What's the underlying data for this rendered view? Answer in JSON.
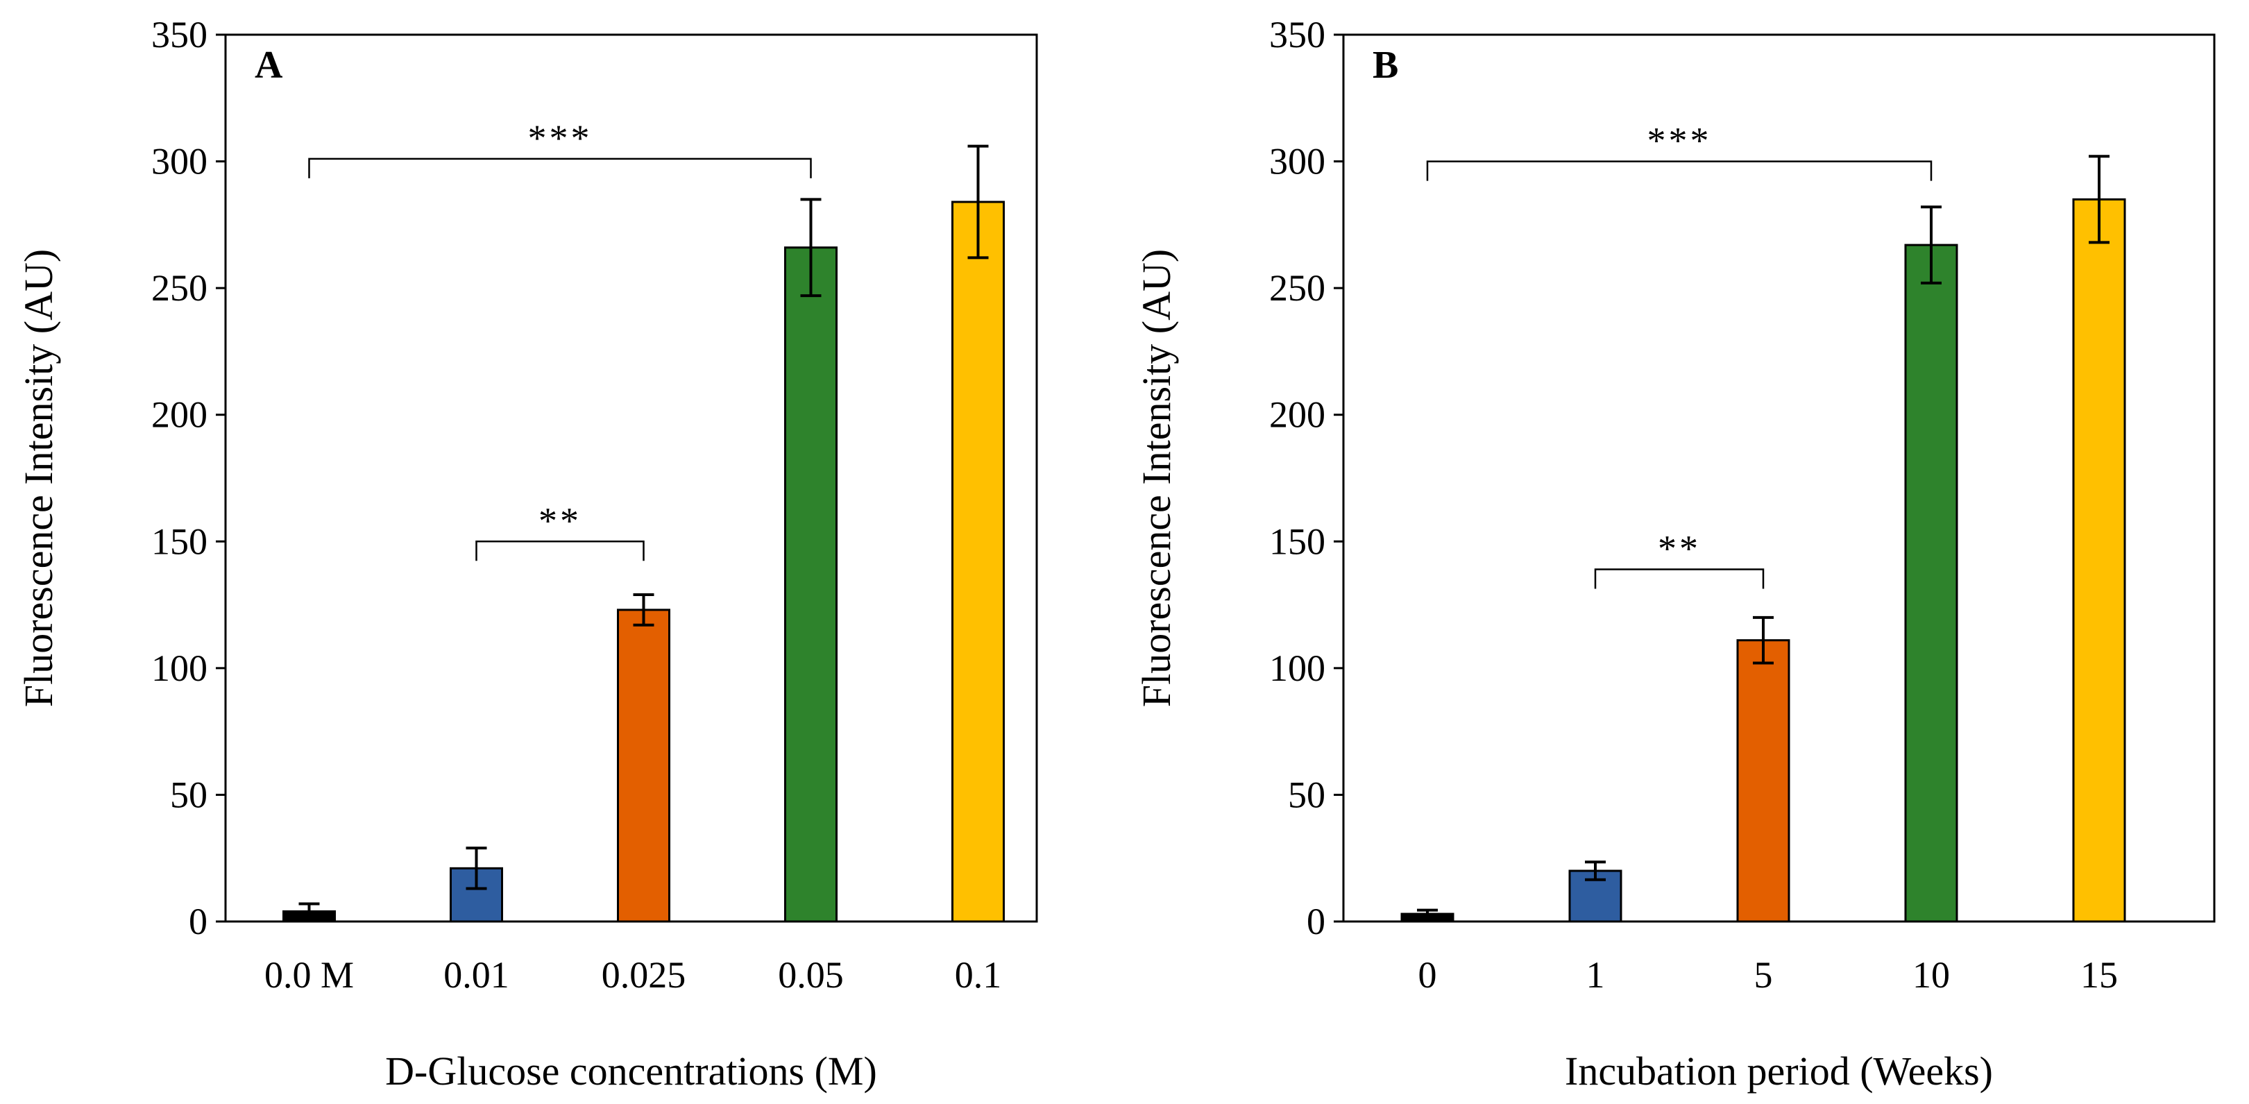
{
  "chart_data": [
    {
      "type": "bar",
      "panel_label": "A",
      "categories": [
        "0.0 M",
        "0.01",
        "0.025",
        "0.05",
        "0.1"
      ],
      "values": [
        4,
        21,
        123,
        266,
        284
      ],
      "errors": [
        3,
        8,
        6,
        19,
        22
      ],
      "colors": [
        "#000000",
        "#2E5DA0",
        "#E35F00",
        "#2E832C",
        "#FFC000"
      ],
      "xlabel": "D-Glucose concentrations (M)",
      "ylabel": "Fluorescence Intensity (AU)",
      "ylim": [
        0,
        350
      ],
      "yticks": [
        0,
        50,
        100,
        150,
        200,
        250,
        300,
        350
      ],
      "grid": false,
      "significance": [
        {
          "from": 0,
          "to": 3,
          "label": "***",
          "level": 301
        },
        {
          "from": 1,
          "to": 2,
          "label": "**",
          "level": 150
        }
      ]
    },
    {
      "type": "bar",
      "panel_label": "B",
      "categories": [
        "0",
        "1",
        "5",
        "10",
        "15"
      ],
      "values": [
        3,
        20,
        111,
        267,
        285
      ],
      "errors": [
        1.5,
        3.5,
        9,
        15,
        17
      ],
      "colors": [
        "#000000",
        "#2E5DA0",
        "#E35F00",
        "#2E832C",
        "#FFC000"
      ],
      "xlabel": "Incubation period (Weeks)",
      "ylabel": "Fluorescence Intensity (AU)",
      "ylim": [
        0,
        350
      ],
      "yticks": [
        0,
        50,
        100,
        150,
        200,
        250,
        300,
        350
      ],
      "grid": false,
      "significance": [
        {
          "from": 0,
          "to": 3,
          "label": "***",
          "level": 300
        },
        {
          "from": 1,
          "to": 2,
          "label": "**",
          "level": 139
        }
      ]
    }
  ]
}
